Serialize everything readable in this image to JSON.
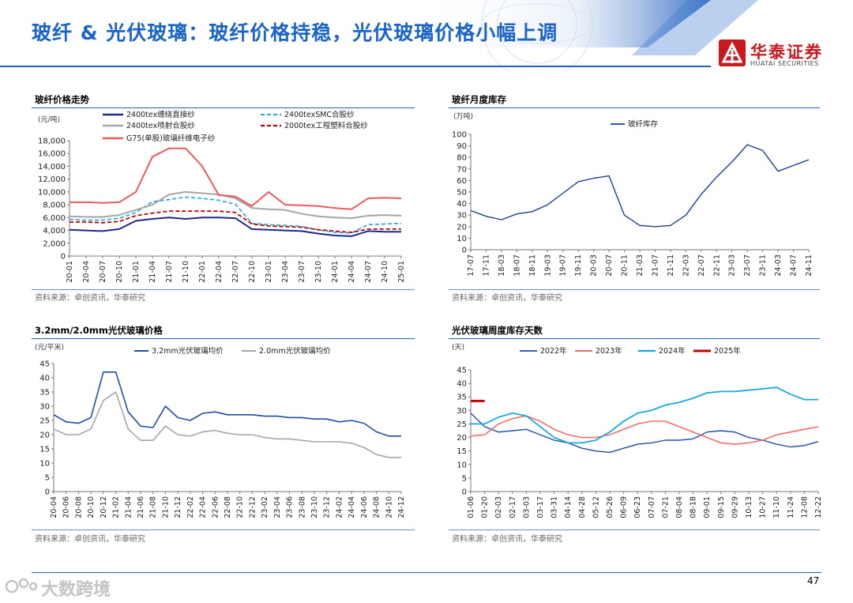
{
  "page": {
    "title": "玻纤 & 光伏玻璃：玻纤价格持稳，光伏玻璃价格小幅上调",
    "logo_cn": "华泰证券",
    "logo_en": "HUATAI SECURITIES",
    "page_number": "47",
    "watermark": "大数跨境",
    "colors": {
      "title_blue": "#1a64c8",
      "logo_red": "#c8191e",
      "rule_blue": "#1f5fbf"
    }
  },
  "panels": {
    "p1": {
      "title": "玻纤价格走势",
      "source": "资料来源：卓创资讯，华泰研究"
    },
    "p2": {
      "title": "玻纤月度库存",
      "source": "资料来源：卓创资讯，华泰研究"
    },
    "p3": {
      "title": "3.2mm/2.0mm光伏玻璃价格",
      "source": "资料来源：卓创资讯，华泰研究"
    },
    "p4": {
      "title": "光伏玻璃周度库存天数",
      "source": "资料来源：卓创资讯，华泰研究"
    }
  },
  "chart_data": [
    {
      "id": "fiberglass_price",
      "type": "line",
      "title": "玻纤价格走势",
      "unit": "(元/吨)",
      "ylim": [
        0,
        18000
      ],
      "yticks": [
        "0",
        "2,000",
        "4,000",
        "6,000",
        "8,000",
        "10,000",
        "12,000",
        "14,000",
        "16,000",
        "18,000"
      ],
      "ytick_values": [
        0,
        2000,
        4000,
        6000,
        8000,
        10000,
        12000,
        14000,
        16000,
        18000
      ],
      "categories": [
        "20-01",
        "20-04",
        "20-07",
        "20-10",
        "21-01",
        "21-04",
        "21-07",
        "21-10",
        "22-01",
        "22-04",
        "22-07",
        "22-10",
        "23-01",
        "23-04",
        "23-07",
        "23-10",
        "24-01",
        "24-04",
        "24-07",
        "24-10",
        "25-01"
      ],
      "legend": [
        "2400tex缠绕直接纱",
        "2400texSMC合股纱",
        "2400tex喷射合股纱",
        "2000tex工程塑料合股纱",
        "G75(单股)玻璃纤维电子纱"
      ],
      "series": [
        {
          "name": "2400tex缠绕直接纱",
          "color": "#1c2a8c",
          "dash": "",
          "width": 2,
          "values": [
            4100,
            4000,
            3900,
            4200,
            5500,
            5800,
            6000,
            5800,
            6000,
            6000,
            5900,
            4200,
            4100,
            4000,
            3900,
            3500,
            3200,
            3100,
            3900,
            3800,
            3800
          ]
        },
        {
          "name": "2400texSMC合股纱",
          "color": "#1aa3e6",
          "dash": "5,3",
          "width": 1.6,
          "values": [
            5700,
            5600,
            5600,
            5900,
            6800,
            8500,
            8800,
            9200,
            9000,
            8700,
            8100,
            5100,
            4900,
            4800,
            4600,
            4100,
            3700,
            3600,
            4900,
            5000,
            5100
          ]
        },
        {
          "name": "2400tex喷射合股纱",
          "color": "#a6a6a6",
          "dash": "",
          "width": 2,
          "values": [
            6200,
            6100,
            6100,
            6400,
            7200,
            8000,
            9600,
            10000,
            9800,
            9600,
            9000,
            7500,
            7300,
            7200,
            6600,
            6200,
            6000,
            5900,
            6300,
            6400,
            6300
          ]
        },
        {
          "name": "2000tex工程塑料合股纱",
          "color": "#c00000",
          "dash": "5,3",
          "width": 1.8,
          "values": [
            5300,
            5300,
            5200,
            5400,
            6300,
            6700,
            7000,
            7000,
            7000,
            7000,
            6800,
            5000,
            4700,
            4600,
            4500,
            4100,
            3900,
            3700,
            4200,
            4200,
            4200
          ]
        },
        {
          "name": "G75(单股)玻璃纤维电子纱",
          "color": "#f05a5a",
          "dash": "",
          "width": 2,
          "values": [
            8400,
            8400,
            8300,
            8400,
            10000,
            15500,
            16800,
            16800,
            14000,
            9500,
            9300,
            7800,
            10000,
            8000,
            7900,
            7800,
            7500,
            7300,
            9000,
            9100,
            9000
          ]
        }
      ]
    },
    {
      "id": "fiberglass_inventory",
      "type": "line",
      "title": "玻纤月度库存",
      "unit": "(万吨)",
      "ylim": [
        0,
        100
      ],
      "yticks": [
        "0",
        "10",
        "20",
        "30",
        "40",
        "50",
        "60",
        "70",
        "80",
        "90",
        "100"
      ],
      "ytick_values": [
        0,
        10,
        20,
        30,
        40,
        50,
        60,
        70,
        80,
        90,
        100
      ],
      "categories": [
        "17-07",
        "17-11",
        "18-03",
        "18-07",
        "18-11",
        "19-03",
        "19-07",
        "19-11",
        "20-03",
        "20-07",
        "20-11",
        "21-03",
        "21-07",
        "21-11",
        "22-03",
        "22-07",
        "22-11",
        "23-03",
        "23-07",
        "23-11",
        "24-03",
        "24-07",
        "24-11"
      ],
      "legend": [
        "玻纤库存"
      ],
      "series": [
        {
          "name": "玻纤库存",
          "color": "#1c3f94",
          "dash": "",
          "width": 1.4,
          "values": [
            34,
            29,
            26,
            31,
            33,
            39,
            49,
            59,
            62,
            64,
            30,
            21,
            20,
            21,
            30,
            48,
            63,
            76,
            91,
            86,
            68,
            73,
            78
          ]
        }
      ]
    },
    {
      "id": "pv_glass_price",
      "type": "line",
      "title": "3.2mm/2.0mm光伏玻璃价格",
      "unit": "(元/平米)",
      "ylim": [
        0,
        45
      ],
      "yticks": [
        "0",
        "5",
        "10",
        "15",
        "20",
        "25",
        "30",
        "35",
        "40",
        "45"
      ],
      "ytick_values": [
        0,
        5,
        10,
        15,
        20,
        25,
        30,
        35,
        40,
        45
      ],
      "categories": [
        "20-04",
        "20-06",
        "20-08",
        "20-10",
        "20-12",
        "21-02",
        "21-04",
        "21-06",
        "21-08",
        "21-10",
        "21-12",
        "22-02",
        "22-04",
        "22-06",
        "22-08",
        "22-10",
        "22-12",
        "23-02",
        "23-04",
        "23-06",
        "23-08",
        "23-10",
        "23-12",
        "24-02",
        "24-04",
        "24-06",
        "24-08",
        "24-10",
        "24-12"
      ],
      "legend": [
        "3.2mm光伏玻璃均价",
        "2.0mm光伏玻璃均价"
      ],
      "series": [
        {
          "name": "3.2mm光伏玻璃均价",
          "color": "#1f4ea3",
          "dash": "",
          "width": 1.6,
          "values": [
            27,
            24.5,
            24,
            26,
            42,
            42,
            28,
            23,
            22.5,
            30,
            26,
            25,
            27.5,
            28,
            27,
            27,
            27,
            26.5,
            26.5,
            26,
            26,
            25.5,
            25.5,
            24.5,
            25,
            24,
            21,
            19.5,
            19.5
          ]
        },
        {
          "name": "2.0mm光伏玻璃均价",
          "color": "#a6a6a6",
          "dash": "",
          "width": 1.6,
          "values": [
            22,
            20,
            20,
            22,
            32,
            35,
            22,
            18,
            18,
            23,
            20,
            19.5,
            21,
            21.5,
            20.5,
            20,
            20,
            19,
            18.5,
            18.5,
            18,
            17.5,
            17.5,
            17.5,
            17,
            15.5,
            13,
            12,
            12
          ]
        }
      ]
    },
    {
      "id": "pv_glass_inventory_days",
      "type": "line",
      "title": "光伏玻璃周度库存天数",
      "unit": "(天)",
      "ylim": [
        0,
        45
      ],
      "yticks": [
        "0",
        "5",
        "10",
        "15",
        "20",
        "25",
        "30",
        "35",
        "40",
        "45"
      ],
      "ytick_values": [
        0,
        5,
        10,
        15,
        20,
        25,
        30,
        35,
        40,
        45
      ],
      "categories": [
        "01-06",
        "01-20",
        "02-03",
        "02-17",
        "03-03",
        "03-17",
        "03-31",
        "04-14",
        "04-28",
        "05-12",
        "05-26",
        "06-09",
        "06-23",
        "07-07",
        "07-21",
        "08-04",
        "08-18",
        "09-01",
        "09-15",
        "09-29",
        "10-13",
        "10-27",
        "11-10",
        "11-24",
        "12-08",
        "12-22"
      ],
      "legend": [
        "2022年",
        "2023年",
        "2024年",
        "2025年"
      ],
      "series": [
        {
          "name": "2022年",
          "color": "#1f4ea3",
          "dash": "",
          "width": 1.4,
          "values": [
            29,
            24,
            22,
            22.5,
            23,
            21,
            19,
            18,
            16,
            15,
            14.5,
            16,
            17.5,
            18,
            19,
            19,
            19.5,
            22,
            22.5,
            22,
            20,
            19,
            17.5,
            16.5,
            17,
            18.5
          ]
        },
        {
          "name": "2023年",
          "color": "#f06c6c",
          "dash": "",
          "width": 1.6,
          "values": [
            20.5,
            21,
            25,
            27,
            28,
            26,
            23,
            21,
            20,
            20,
            21,
            23,
            25,
            26,
            26,
            24,
            22,
            20,
            18,
            17.5,
            18,
            19,
            21,
            22,
            23,
            24
          ]
        },
        {
          "name": "2024年",
          "color": "#1aa7dd",
          "dash": "",
          "width": 1.8,
          "values": [
            25,
            25,
            27.5,
            29,
            28,
            24,
            20,
            18,
            18,
            19,
            22,
            26,
            29,
            30,
            32,
            33,
            34.5,
            36.5,
            37,
            37,
            37.5,
            38,
            38.5,
            36,
            34,
            34
          ]
        },
        {
          "name": "2025年",
          "color": "#c00000",
          "dash": "",
          "width": 3,
          "values": [
            33.5,
            33.5,
            null,
            null,
            null,
            null,
            null,
            null,
            null,
            null,
            null,
            null,
            null,
            null,
            null,
            null,
            null,
            null,
            null,
            null,
            null,
            null,
            null,
            null,
            null,
            null
          ]
        }
      ]
    }
  ]
}
